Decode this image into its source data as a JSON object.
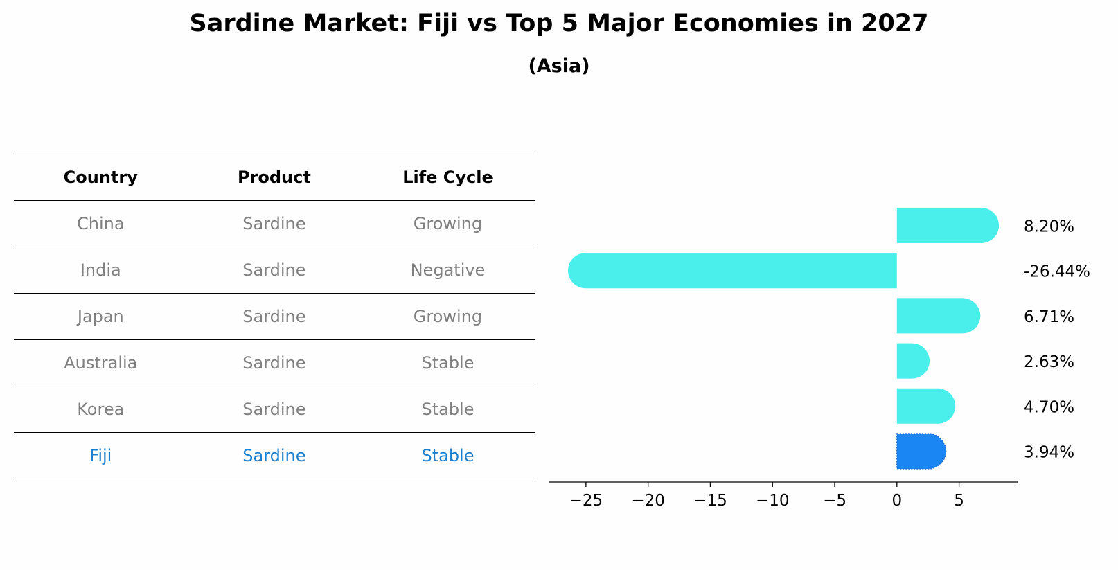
{
  "title": "Sardine Market: Fiji vs Top 5 Major Economies in 2027",
  "subtitle": "(Asia)",
  "table": {
    "headers": [
      "Country",
      "Product",
      "Life Cycle"
    ],
    "rows": [
      [
        "China",
        "Sardine",
        "Growing"
      ],
      [
        "India",
        "Sardine",
        "Negative"
      ],
      [
        "Japan",
        "Sardine",
        "Growing"
      ],
      [
        "Australia",
        "Sardine",
        "Stable"
      ],
      [
        "Korea",
        "Sardine",
        "Stable"
      ],
      [
        "Fiji",
        "Sardine",
        "Stable"
      ]
    ],
    "highlight_row": 5
  },
  "colors": {
    "bar": "#4aeeea",
    "highlight_bar": "#1a86f3",
    "highlight_text": "#1b80cf",
    "muted_text": "#808080"
  },
  "chart_data": {
    "type": "bar",
    "orientation": "horizontal",
    "categories": [
      "China",
      "India",
      "Japan",
      "Australia",
      "Korea",
      "Fiji"
    ],
    "values": [
      8.2,
      -26.44,
      6.71,
      2.63,
      4.7,
      3.94
    ],
    "value_labels": [
      "8.20%",
      "-26.44%",
      "6.71%",
      "2.63%",
      "4.70%",
      "3.94%"
    ],
    "highlight_category": "Fiji",
    "xlim": [
      -28,
      9.7
    ],
    "xticks": [
      -25,
      -20,
      -15,
      -10,
      -5,
      0,
      5
    ],
    "xtick_labels": [
      "−25",
      "−20",
      "−15",
      "−10",
      "−5",
      "0",
      "5"
    ],
    "grid": false
  }
}
